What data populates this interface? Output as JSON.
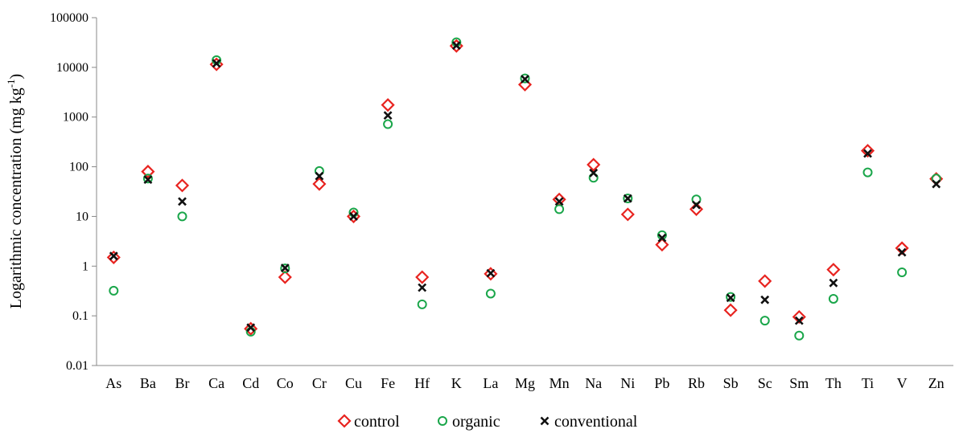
{
  "chart_data": {
    "type": "scatter",
    "ylabel": "Logarithmic concentration (mg kg",
    "ylabel_sup": "-1",
    "ylabel_end": ")",
    "yscale": "log",
    "ylim": [
      0.01,
      100000
    ],
    "yticks": [
      "0.01",
      "0.1",
      "1",
      "10",
      "100",
      "1000",
      "10000",
      "100000"
    ],
    "grid": false,
    "legend_position": "bottom",
    "categories": [
      "As",
      "Ba",
      "Br",
      "Ca",
      "Cd",
      "Co",
      "Cr",
      "Cu",
      "Fe",
      "Hf",
      "K",
      "La",
      "Mg",
      "Mn",
      "Na",
      "Ni",
      "Pb",
      "Rb",
      "Sb",
      "Sc",
      "Sm",
      "Th",
      "Ti",
      "V",
      "Zn"
    ],
    "series": [
      {
        "name": "control",
        "marker": "diamond",
        "color": "#e8231f",
        "values": [
          1.5,
          80,
          42,
          11500,
          0.055,
          0.6,
          45,
          10,
          1750,
          0.6,
          27000,
          0.7,
          4500,
          22,
          110,
          11,
          2.7,
          14,
          0.13,
          0.5,
          0.095,
          0.85,
          210,
          2.3,
          57
        ]
      },
      {
        "name": "organic",
        "marker": "circle",
        "color": "#1aa64a",
        "values": [
          0.32,
          58,
          10,
          14000,
          0.048,
          0.9,
          82,
          12,
          720,
          0.17,
          32000,
          0.28,
          6000,
          14,
          60,
          23,
          4.2,
          22,
          0.24,
          0.08,
          0.04,
          0.22,
          77,
          0.75,
          58
        ]
      },
      {
        "name": "conventional",
        "marker": "x",
        "color": "#111111",
        "values": [
          1.6,
          55,
          20,
          12000,
          0.058,
          0.92,
          65,
          10,
          1080,
          0.37,
          27500,
          0.72,
          5800,
          20,
          75,
          23,
          3.7,
          17,
          0.23,
          0.21,
          0.08,
          0.46,
          185,
          1.9,
          45
        ]
      }
    ]
  }
}
